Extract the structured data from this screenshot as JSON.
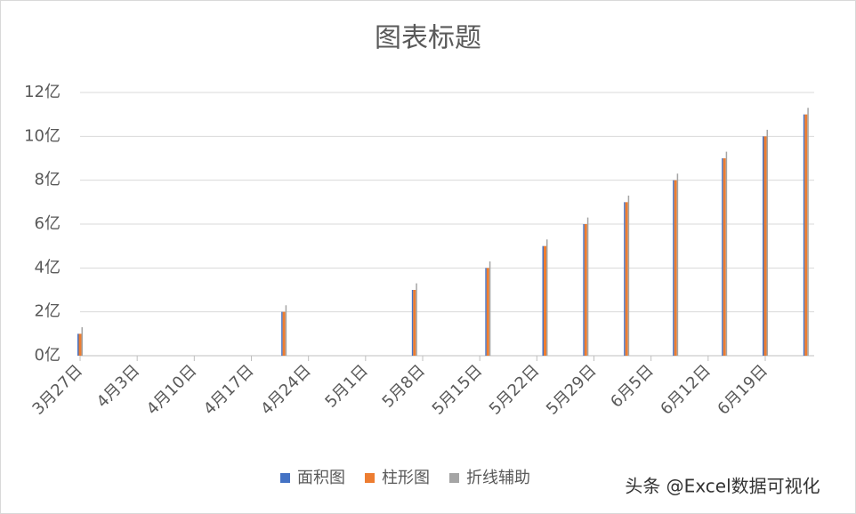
{
  "chart_data": {
    "type": "bar",
    "title": "图表标题",
    "x": [
      "3月27日",
      "4月21日",
      "5月7日",
      "5月16日",
      "5月23日",
      "5月28日",
      "6月2日",
      "6月8日",
      "6月14日",
      "6月19日",
      "6月24日"
    ],
    "series": [
      {
        "name": "面积图",
        "color": "#4472c4",
        "values": [
          1,
          2,
          3,
          4,
          5,
          6,
          7,
          8,
          9,
          10,
          11
        ]
      },
      {
        "name": "柱形图",
        "color": "#ed7d31",
        "values": [
          1,
          2,
          3,
          4,
          5,
          6,
          7,
          8,
          9,
          10,
          11
        ]
      },
      {
        "name": "折线辅助",
        "color": "#a5a5a5",
        "values": [
          1.3,
          2.3,
          3.3,
          4.3,
          5.3,
          6.3,
          7.3,
          8.3,
          9.3,
          10.3,
          11.3
        ]
      }
    ],
    "xlim": [
      "3月27日",
      "6月25日"
    ],
    "xticks": [
      "3月27日",
      "4月3日",
      "4月10日",
      "4月17日",
      "4月24日",
      "5月1日",
      "5月8日",
      "5月15日",
      "5月22日",
      "5月29日",
      "6月5日",
      "6月12日",
      "6月19日"
    ],
    "ylim": [
      0,
      12
    ],
    "yticks": [
      {
        "value": 0,
        "label": "0亿"
      },
      {
        "value": 2,
        "label": "2亿"
      },
      {
        "value": 4,
        "label": "4亿"
      },
      {
        "value": 6,
        "label": "6亿"
      },
      {
        "value": 8,
        "label": "8亿"
      },
      {
        "value": 10,
        "label": "10亿"
      },
      {
        "value": 12,
        "label": "12亿"
      }
    ],
    "grid": true,
    "legend": "bottom",
    "watermark": "头条 @Excel数据可视化"
  }
}
